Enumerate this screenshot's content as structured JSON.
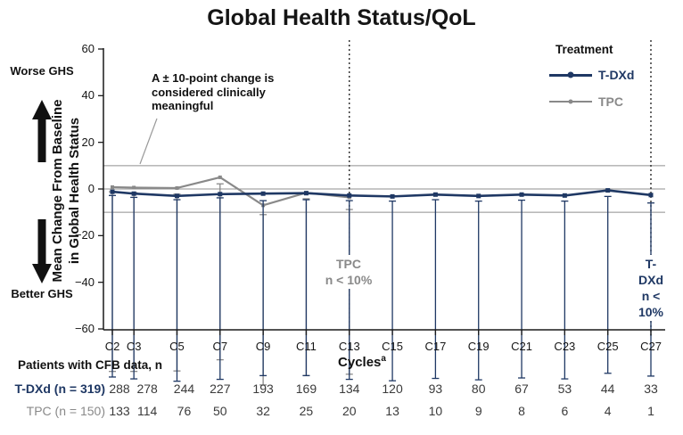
{
  "title": "Global Health Status/QoL",
  "side_labels": {
    "worse": "Worse GHS",
    "better": "Better GHS"
  },
  "y_axis_title": {
    "line1": "Mean Change From Baseline",
    "line2": "in Global Health Status"
  },
  "annotation": "A ± 10-point change is considered clinically meaningful",
  "legend": {
    "title": "Treatment",
    "items": [
      {
        "label": "T-DXd",
        "color": "#1f3864"
      },
      {
        "label": "TPC",
        "color": "#898989"
      }
    ]
  },
  "dropout_labels": [
    {
      "line1": "TPC",
      "line2": "n < 10%",
      "cycle": 13,
      "color": "#898989"
    },
    {
      "line1": "T-DXd",
      "line2": "n < 10%",
      "cycle": 27,
      "color": "#1f3864"
    }
  ],
  "chart_data": {
    "type": "line",
    "title": "Global Health Status/QoL",
    "xlabel": "Cycles",
    "xlabel_superscript": "a",
    "ylabel": "Mean Change From Baseline in Global Health Status",
    "x_categories": [
      "C2",
      "C3",
      "C5",
      "C7",
      "C9",
      "C11",
      "C13",
      "C15",
      "C17",
      "C19",
      "C21",
      "C23",
      "C25",
      "C27"
    ],
    "x_cycles": [
      2,
      3,
      5,
      7,
      9,
      11,
      13,
      15,
      17,
      19,
      21,
      23,
      25,
      27
    ],
    "ylim": [
      -60,
      60
    ],
    "yticks": [
      60,
      40,
      20,
      0,
      -20,
      -40,
      -60
    ],
    "reference_lines": [
      10,
      0,
      -10
    ],
    "dashed_vlines_at_cycles": [
      13,
      27
    ],
    "grid": false,
    "legend_position": "top-right",
    "series": [
      {
        "name": "T-DXd",
        "color": "#1f3864",
        "values": [
          -1.2,
          -2.0,
          -3.0,
          -2.2,
          -2.0,
          -1.8,
          -2.8,
          -3.2,
          -2.4,
          -3.0,
          -2.4,
          -2.8,
          -0.6,
          -2.6
        ],
        "errors": [
          1.6,
          1.6,
          1.6,
          1.6,
          3.0,
          2.8,
          2.2,
          2.0,
          2.2,
          2.2,
          2.4,
          2.4,
          2.6,
          3.4
        ]
      },
      {
        "name": "TPC",
        "color": "#898989",
        "values": [
          0.8,
          0.6,
          0.4,
          5.0,
          -7.0,
          -1.6,
          -3.6,
          null,
          null,
          null,
          null,
          null,
          null,
          null
        ],
        "errors": [
          2.0,
          2.2,
          2.6,
          2.8,
          4.0,
          2.6,
          5.2,
          null,
          null,
          null,
          null,
          null,
          null,
          null
        ]
      }
    ]
  },
  "table": {
    "header": "Patients with CFB data, n",
    "rows": [
      {
        "label": "T-DXd (n = 319)",
        "color": "#1f3864",
        "values": [
          288,
          278,
          244,
          227,
          193,
          169,
          134,
          120,
          93,
          80,
          67,
          53,
          44,
          33
        ]
      },
      {
        "label": "TPC (n = 150)",
        "color": "#898989",
        "values": [
          133,
          114,
          76,
          50,
          32,
          25,
          20,
          13,
          10,
          9,
          8,
          6,
          4,
          1
        ]
      }
    ]
  }
}
